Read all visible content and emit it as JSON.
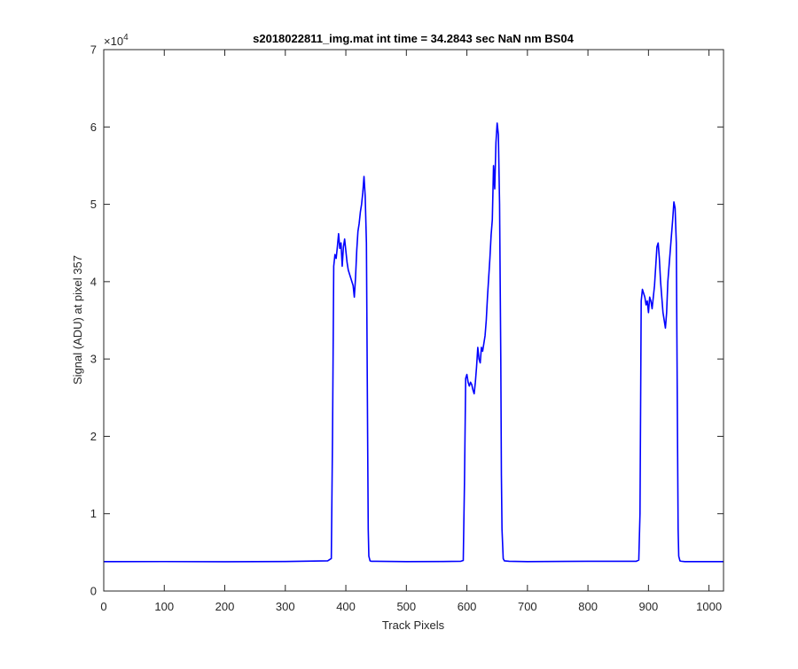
{
  "chart_data": {
    "type": "line",
    "title": "s2018022811_img.mat int time = 34.2843 sec  NaN nm BS04",
    "xlabel": "Track Pixels",
    "ylabel": "Signal (ADU) at pixel 357",
    "xlim": [
      0,
      1024
    ],
    "ylim": [
      0,
      70000
    ],
    "xticks": [
      0,
      100,
      200,
      300,
      400,
      500,
      600,
      700,
      800,
      900,
      1000
    ],
    "xtick_labels": [
      "0",
      "100",
      "200",
      "300",
      "400",
      "500",
      "600",
      "700",
      "800",
      "900",
      "1000"
    ],
    "yticks": [
      0,
      10000,
      20000,
      30000,
      40000,
      50000,
      60000,
      70000
    ],
    "ytick_labels": [
      "0",
      "1",
      "2",
      "3",
      "4",
      "5",
      "6",
      "7"
    ],
    "y_exponent_label": "×10",
    "y_exponent_power": "4",
    "grid": false,
    "line_color": "#0000ff",
    "series": [
      {
        "x": [
          0,
          100,
          200,
          300,
          370,
          376,
          378,
          380,
          382,
          384,
          386,
          388,
          390,
          392,
          394,
          396,
          398,
          400,
          402,
          404,
          406,
          408,
          410,
          412,
          414,
          416,
          418,
          420,
          422,
          424,
          426,
          428,
          430,
          432,
          434,
          436,
          437,
          438,
          440,
          442,
          450,
          500,
          560,
          590,
          594,
          596,
          598,
          600,
          602,
          604,
          606,
          608,
          610,
          612,
          614,
          616,
          618,
          620,
          622,
          624,
          626,
          628,
          630,
          632,
          634,
          636,
          638,
          640,
          642,
          644,
          646,
          648,
          650,
          652,
          654,
          656,
          657,
          658,
          660,
          662,
          670,
          700,
          800,
          880,
          884,
          886,
          888,
          890,
          892,
          894,
          896,
          898,
          900,
          902,
          904,
          906,
          908,
          910,
          912,
          914,
          916,
          918,
          920,
          922,
          924,
          926,
          928,
          930,
          932,
          934,
          936,
          938,
          940,
          942,
          944,
          946,
          948,
          949,
          950,
          952,
          954,
          960,
          1000,
          1024
        ],
        "y": [
          3800,
          3810,
          3790,
          3820,
          3900,
          4200,
          20000,
          42000,
          43500,
          43000,
          44500,
          46200,
          44300,
          45000,
          42000,
          44500,
          45500,
          44000,
          42500,
          41500,
          41000,
          40500,
          40000,
          39500,
          38000,
          40500,
          44000,
          46500,
          47500,
          49000,
          50000,
          51500,
          53600,
          51000,
          45000,
          20000,
          8000,
          4500,
          3900,
          3850,
          3850,
          3800,
          3820,
          3850,
          3950,
          14000,
          27500,
          28000,
          27000,
          26500,
          27000,
          26700,
          26000,
          25500,
          27000,
          29000,
          31500,
          30000,
          29500,
          31500,
          31000,
          32000,
          33000,
          35000,
          38000,
          40500,
          43000,
          46000,
          48000,
          55000,
          52000,
          58000,
          60500,
          59000,
          50000,
          30000,
          15000,
          8000,
          4200,
          3900,
          3850,
          3800,
          3850,
          3850,
          4000,
          10000,
          37500,
          39000,
          38500,
          38000,
          37000,
          37500,
          36000,
          38000,
          37500,
          36500,
          38000,
          39500,
          42000,
          44500,
          45000,
          43000,
          40000,
          38000,
          36000,
          35000,
          34000,
          36000,
          40000,
          42000,
          44000,
          46000,
          48000,
          50300,
          49500,
          45000,
          20000,
          8000,
          4500,
          3900,
          3850,
          3800,
          3800,
          3800
        ]
      }
    ]
  }
}
